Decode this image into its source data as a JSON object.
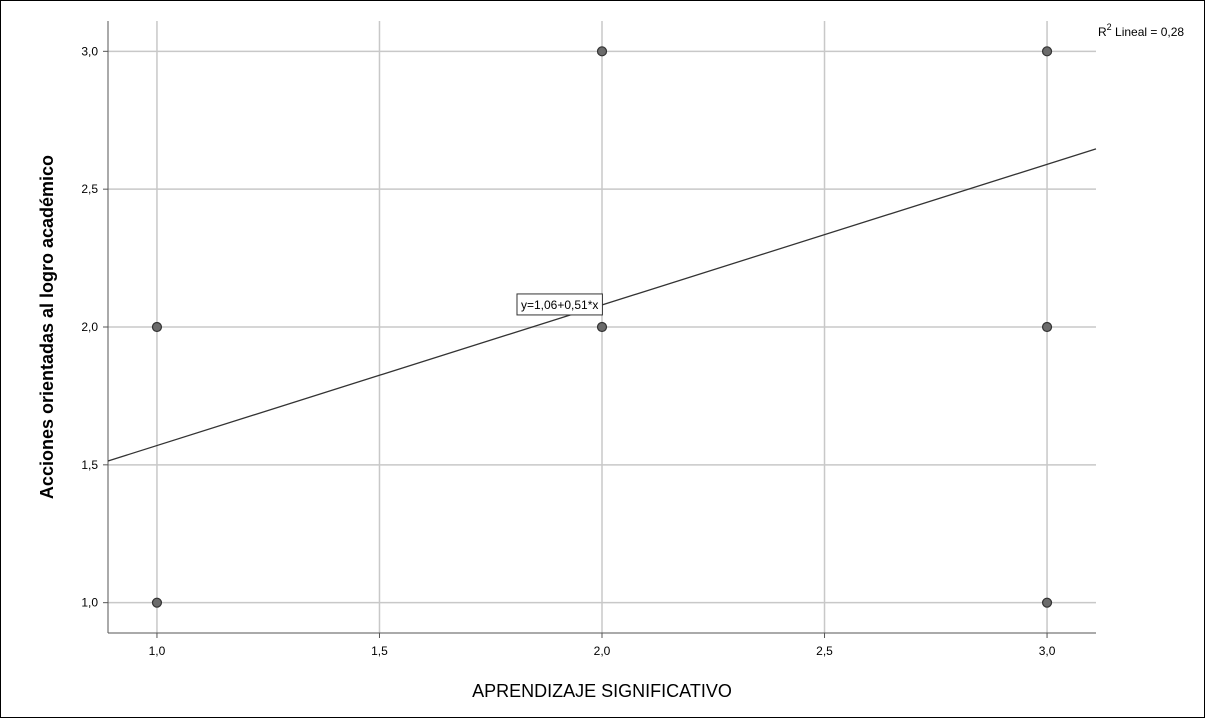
{
  "chart_data": {
    "type": "scatter",
    "xlabel": "APRENDIZAJE SIGNIFICATIVO",
    "ylabel": "Acciones orientadas al logro académico",
    "xlim": [
      0.89,
      3.11
    ],
    "ylim": [
      0.89,
      3.11
    ],
    "x_ticks": [
      "1,0",
      "1,5",
      "2,0",
      "2,5",
      "3,0"
    ],
    "x_tick_values": [
      1.0,
      1.5,
      2.0,
      2.5,
      3.0
    ],
    "y_ticks": [
      "1,0",
      "1,5",
      "2,0",
      "2,5",
      "3,0"
    ],
    "y_tick_values": [
      1.0,
      1.5,
      2.0,
      2.5,
      3.0
    ],
    "grid": true,
    "points": [
      {
        "x": 1,
        "y": 1
      },
      {
        "x": 1,
        "y": 2
      },
      {
        "x": 2,
        "y": 2
      },
      {
        "x": 2,
        "y": 3
      },
      {
        "x": 3,
        "y": 1
      },
      {
        "x": 3,
        "y": 2
      },
      {
        "x": 3,
        "y": 3
      }
    ],
    "fit_line": {
      "intercept": 1.06,
      "slope": 0.51,
      "label": "y=1,06+0,51*x"
    },
    "r2": {
      "prefix": "R",
      "superscript": "2",
      "text": " Lineal = 0,28"
    },
    "colors": {
      "marker_fill": "#6b6b6b",
      "marker_stroke": "#333333",
      "grid": "#c8c8c8",
      "line": "#333333"
    }
  }
}
